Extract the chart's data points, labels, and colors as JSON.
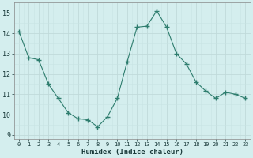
{
  "x": [
    0,
    1,
    2,
    3,
    4,
    5,
    6,
    7,
    8,
    9,
    10,
    11,
    12,
    13,
    14,
    15,
    16,
    17,
    18,
    19,
    20,
    21,
    22,
    23
  ],
  "y": [
    14.1,
    12.8,
    12.7,
    11.5,
    10.8,
    10.1,
    9.8,
    9.75,
    9.4,
    9.9,
    10.8,
    12.6,
    14.3,
    14.35,
    15.1,
    14.3,
    13.0,
    12.5,
    11.6,
    11.15,
    10.8,
    11.1,
    11.0,
    10.8
  ],
  "xlabel": "Humidex (Indice chaleur)",
  "ylim": [
    8.8,
    15.5
  ],
  "xlim": [
    -0.5,
    23.5
  ],
  "yticks": [
    9,
    10,
    11,
    12,
    13,
    14,
    15
  ],
  "xticks": [
    0,
    1,
    2,
    3,
    4,
    5,
    6,
    7,
    8,
    9,
    10,
    11,
    12,
    13,
    14,
    15,
    16,
    17,
    18,
    19,
    20,
    21,
    22,
    23
  ],
  "line_color": "#2e7d6e",
  "marker_color": "#2e7d6e",
  "bg_color": "#d4eeee",
  "grid_major_color": "#c0dada",
  "grid_minor_color": "#c8e4e4",
  "spine_color": "#888888"
}
